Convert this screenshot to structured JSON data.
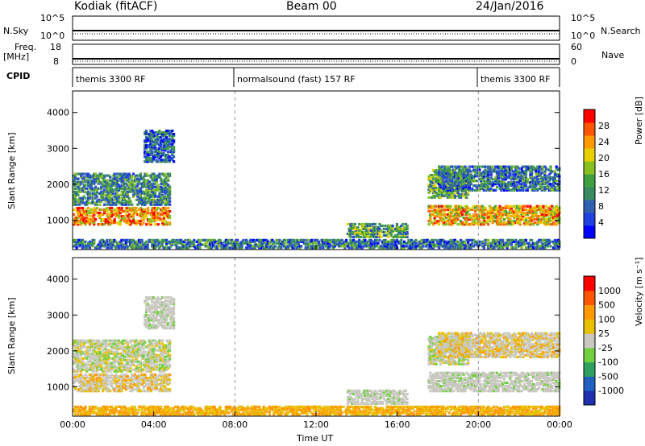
{
  "header": {
    "station": "Kodiak (fitACF)",
    "beam": "Beam 00",
    "date": "24/Jan/2016"
  },
  "status_panels": {
    "nsky_label": "N.Sky",
    "nsky_ticks": [
      "10^5",
      "10^0"
    ],
    "nsearch_label": "N.Search",
    "nsearch_ticks": [
      "10^5",
      "10^0"
    ],
    "freq_label": "Freq.",
    "freq_unit": "[MHz]",
    "freq_ticks": [
      "18",
      "8"
    ],
    "nave_label": "Nave",
    "nave_ticks": [
      "60",
      "0"
    ],
    "cpid_label": "CPID",
    "modes": [
      {
        "label": "themis 3300 RF",
        "start_h": 0,
        "end_h": 8
      },
      {
        "label": "normalsound (fast) 157 RF",
        "start_h": 8,
        "end_h": 20
      },
      {
        "label": "themis 3300 RF",
        "start_h": 20,
        "end_h": 24
      }
    ]
  },
  "chart_data": [
    {
      "type": "heatmap",
      "panel": "power",
      "ylabel": "Slant Range [km]",
      "xlabel": "Time UT",
      "x_range_hours": [
        0,
        24
      ],
      "y_range_km": [
        180,
        4600
      ],
      "x_tick_labels": [
        "00:00",
        "04:00",
        "08:00",
        "12:00",
        "16:00",
        "20:00",
        "00:00"
      ],
      "y_ticks": [
        1000,
        2000,
        3000,
        4000
      ],
      "colorbar": {
        "label": "Power [dB]",
        "ticks": [
          "4",
          "8",
          "12",
          "16",
          "20",
          "24",
          "28"
        ],
        "colors": [
          "#0000ff",
          "#2040e0",
          "#3060b0",
          "#3a8a60",
          "#40a040",
          "#88c020",
          "#e8d000",
          "#ff9900",
          "#ff5500",
          "#ff0000"
        ]
      },
      "echo_regions": [
        {
          "t0": 0.0,
          "t1": 4.8,
          "r0": 850,
          "r1": 1350,
          "level": 0.75
        },
        {
          "t0": 0.0,
          "t1": 4.8,
          "r0": 1400,
          "r1": 2300,
          "level": 0.35
        },
        {
          "t0": 3.5,
          "t1": 5.0,
          "r0": 2600,
          "r1": 3500,
          "level": 0.25
        },
        {
          "t0": 13.5,
          "t1": 16.5,
          "r0": 500,
          "r1": 900,
          "level": 0.4
        },
        {
          "t0": 17.5,
          "t1": 19.5,
          "r0": 1600,
          "r1": 2400,
          "level": 0.45
        },
        {
          "t0": 17.5,
          "t1": 24.0,
          "r0": 850,
          "r1": 1400,
          "level": 0.7
        },
        {
          "t0": 18.0,
          "t1": 24.0,
          "r0": 1800,
          "r1": 2500,
          "level": 0.3
        },
        {
          "t0": 0.0,
          "t1": 24.0,
          "r0": 200,
          "r1": 450,
          "level": 0.3
        }
      ]
    },
    {
      "type": "heatmap",
      "panel": "velocity",
      "ylabel": "Slant Range [km]",
      "xlabel": "Time UT",
      "x_range_hours": [
        0,
        24
      ],
      "y_range_km": [
        180,
        4600
      ],
      "x_tick_labels": [
        "00:00",
        "04:00",
        "08:00",
        "12:00",
        "16:00",
        "20:00",
        "00:00"
      ],
      "y_ticks": [
        1000,
        2000,
        3000,
        4000
      ],
      "colorbar": {
        "label": "Velocity [m s⁻¹]",
        "ticks": [
          "1000",
          "500",
          "100",
          "25",
          "-25",
          "-100",
          "-500",
          "-1000"
        ],
        "colors": [
          "#2030b0",
          "#2060c0",
          "#30a060",
          "#70d040",
          "#c8c8c0",
          "#e8c000",
          "#ff9900",
          "#ff5500",
          "#ff0000"
        ]
      },
      "echo_regions": [
        {
          "t0": 0.0,
          "t1": 4.8,
          "r0": 850,
          "r1": 1350,
          "mix": "gray-orange"
        },
        {
          "t0": 0.0,
          "t1": 4.8,
          "r0": 1400,
          "r1": 2300,
          "mix": "gray-green"
        },
        {
          "t0": 3.5,
          "t1": 5.0,
          "r0": 2600,
          "r1": 3500,
          "mix": "gray"
        },
        {
          "t0": 13.5,
          "t1": 16.5,
          "r0": 500,
          "r1": 900,
          "mix": "gray"
        },
        {
          "t0": 17.5,
          "t1": 19.5,
          "r0": 1600,
          "r1": 2400,
          "mix": "gray-green"
        },
        {
          "t0": 17.5,
          "t1": 24.0,
          "r0": 850,
          "r1": 1400,
          "mix": "gray"
        },
        {
          "t0": 18.0,
          "t1": 24.0,
          "r0": 1800,
          "r1": 2500,
          "mix": "gray-orange"
        },
        {
          "t0": 0.0,
          "t1": 24.0,
          "r0": 200,
          "r1": 450,
          "mix": "orange"
        }
      ]
    }
  ]
}
